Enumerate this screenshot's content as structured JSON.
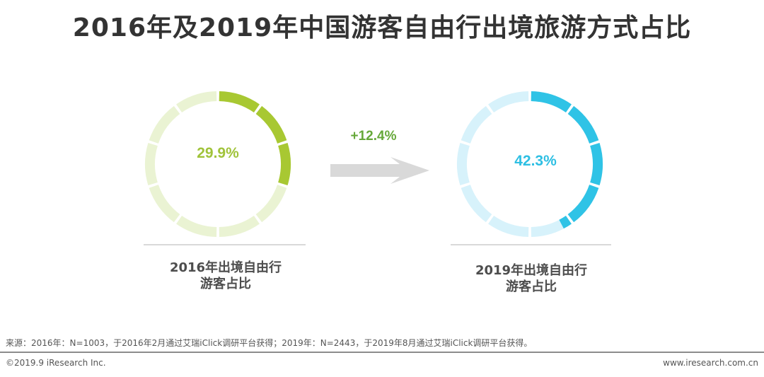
{
  "title": "2016年及2019年中国游客自由行出境旅游方式占比",
  "chart_data": {
    "type": "donut",
    "title": "2016年及2019年中国游客自由行出境旅游方式占比",
    "series": [
      {
        "name": "2016年出境自由行游客占比",
        "year": "2016",
        "value": 29.9,
        "value_label": "29.9%",
        "label_line1": "2016年出境自由行",
        "label_line2": "游客占比",
        "color": "#a8c832",
        "track_color": "#eaf3d3",
        "text_color": "#a0c33a"
      },
      {
        "name": "2019年出境自由行游客占比",
        "year": "2019",
        "value": 42.3,
        "value_label": "42.3%",
        "label_line1": "2019年出境自由行",
        "label_line2": "游客占比",
        "color": "#2fc3e6",
        "track_color": "#d7f2fb",
        "text_color": "#2ebfe3"
      }
    ],
    "change_label": "+12.4%",
    "change_color": "#66a83a",
    "arrow_color": "#d9d9d9",
    "segments": 10
  },
  "footer": {
    "source": "来源：2016年：N=1003，于2016年2月通过艾瑞iClick调研平台获得；2019年：N=2443，于2019年8月通过艾瑞iClick调研平台获得。",
    "copyright": "©2019.9 iResearch Inc.",
    "website": "www.iresearch.com.cn"
  }
}
